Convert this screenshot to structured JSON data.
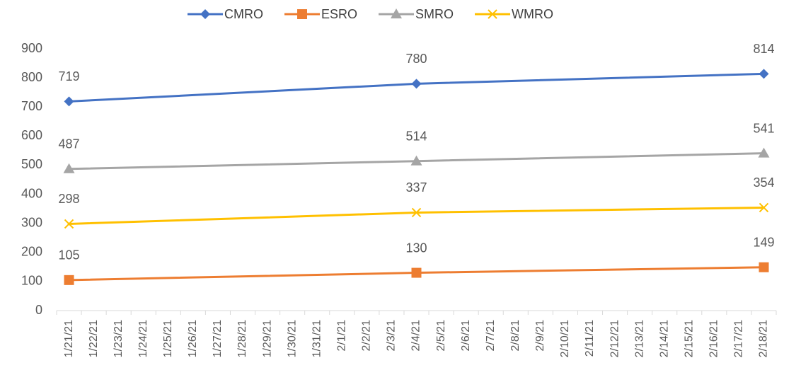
{
  "chart_data": {
    "type": "line",
    "x": [
      "1/21/21",
      "2/4/21",
      "2/18/21"
    ],
    "xticks": [
      "1/21/21",
      "1/22/21",
      "1/23/21",
      "1/24/21",
      "1/25/21",
      "1/26/21",
      "1/27/21",
      "1/28/21",
      "1/29/21",
      "1/30/21",
      "1/31/21",
      "2/1/21",
      "2/2/21",
      "2/3/21",
      "2/4/21",
      "2/5/21",
      "2/6/21",
      "2/7/21",
      "2/8/21",
      "2/9/21",
      "2/10/21",
      "2/11/21",
      "2/12/21",
      "2/13/21",
      "2/14/21",
      "2/15/21",
      "2/16/21",
      "2/17/21",
      "2/18/21"
    ],
    "series": [
      {
        "name": "CMRO",
        "color": "#4472c4",
        "marker": "diamond",
        "values": [
          719,
          780,
          814
        ]
      },
      {
        "name": "ESRO",
        "color": "#ed7d31",
        "marker": "square",
        "values": [
          105,
          130,
          149
        ]
      },
      {
        "name": "SMRO",
        "color": "#a5a5a5",
        "marker": "triangle",
        "values": [
          487,
          514,
          541
        ]
      },
      {
        "name": "WMRO",
        "color": "#ffc000",
        "marker": "x",
        "values": [
          298,
          337,
          354
        ]
      }
    ],
    "ylim": [
      0,
      900
    ],
    "yticks": [
      0,
      100,
      200,
      300,
      400,
      500,
      600,
      700,
      800,
      900
    ],
    "grid": false,
    "legend": "top"
  }
}
